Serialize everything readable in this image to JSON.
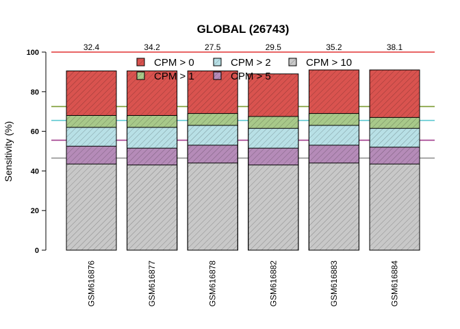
{
  "chart_data": {
    "type": "bar",
    "title": "GLOBAL (26743)",
    "xlabel": "",
    "ylabel": "Sensitivity (%)",
    "ylim": [
      0,
      100
    ],
    "yticks": [
      0,
      20,
      40,
      60,
      80,
      100
    ],
    "categories": [
      "GSM616876",
      "GSM616877",
      "GSM616878",
      "GSM616882",
      "GSM616883",
      "GSM616884"
    ],
    "top_labels": [
      "32.4",
      "34.2",
      "27.5",
      "29.5",
      "35.2",
      "38.1"
    ],
    "series": [
      {
        "name": "CPM > 0",
        "color": "#d9534f",
        "values": [
          90.5,
          90.5,
          90.5,
          89.0,
          91.0,
          91.0
        ]
      },
      {
        "name": "CPM > 1",
        "color": "#a8c98a",
        "values": [
          68.0,
          68.0,
          69.0,
          67.5,
          69.0,
          67.0
        ]
      },
      {
        "name": "CPM > 2",
        "color": "#b8e0e6",
        "values": [
          62.0,
          62.0,
          63.0,
          61.5,
          63.0,
          61.5
        ]
      },
      {
        "name": "CPM > 5",
        "color": "#b58bb8",
        "values": [
          52.5,
          51.5,
          53.0,
          51.5,
          53.0,
          52.0
        ]
      },
      {
        "name": "CPM > 10",
        "color": "#c8c8c8",
        "values": [
          43.5,
          43.0,
          44.0,
          43.0,
          44.0,
          43.5
        ]
      }
    ],
    "reference_lines": [
      {
        "value": 100.0,
        "color": "#e03030"
      },
      {
        "value": 72.5,
        "color": "#7a9a30"
      },
      {
        "value": 65.5,
        "color": "#5cc8d0"
      },
      {
        "value": 55.5,
        "color": "#a03c8c"
      },
      {
        "value": 46.5,
        "color": "#8a8a8a"
      }
    ],
    "legend": {
      "placement": "top",
      "rows": [
        [
          "CPM > 0",
          "CPM > 2",
          "CPM > 10"
        ],
        [
          "CPM > 1",
          "CPM > 5"
        ]
      ]
    },
    "grid": false
  }
}
